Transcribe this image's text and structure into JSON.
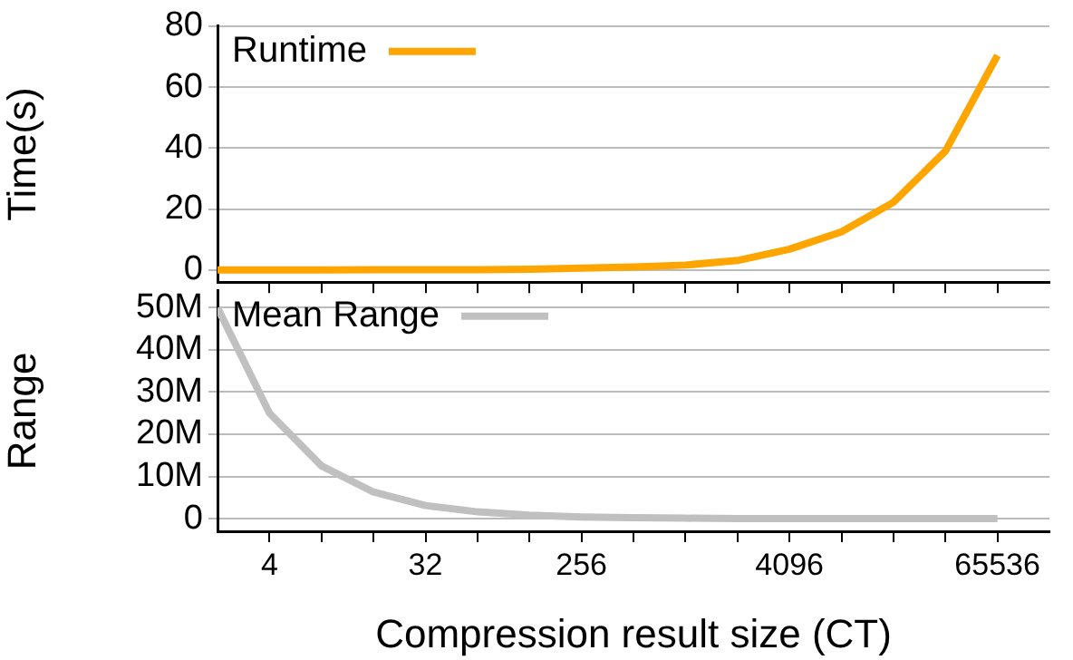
{
  "chart_data": [
    {
      "type": "line",
      "ylabel": "Time(s)",
      "x": [
        2,
        4,
        8,
        16,
        32,
        64,
        128,
        256,
        512,
        1024,
        2048,
        4096,
        8192,
        16384,
        32768,
        65536
      ],
      "log": "x",
      "xlim": [
        2,
        131072
      ],
      "xticks": [
        {
          "value": 4,
          "label": null
        },
        {
          "value": 8,
          "label": null
        },
        {
          "value": 16,
          "label": null
        },
        {
          "value": 32,
          "label": null
        },
        {
          "value": 64,
          "label": null
        },
        {
          "value": 128,
          "label": null
        },
        {
          "value": 256,
          "label": null
        },
        {
          "value": 512,
          "label": null
        },
        {
          "value": 1024,
          "label": null
        },
        {
          "value": 2048,
          "label": null
        },
        {
          "value": 4096,
          "label": null
        },
        {
          "value": 8192,
          "label": null
        },
        {
          "value": 16384,
          "label": null
        },
        {
          "value": 32768,
          "label": null
        },
        {
          "value": 65536,
          "label": null
        }
      ],
      "ylim": [
        -4,
        80
      ],
      "yticks": [
        0,
        20,
        40,
        60,
        80
      ],
      "tick_labels": "y",
      "grid": "y",
      "legend": "top left",
      "marker": "none",
      "line_style": "solid",
      "series": [
        {
          "name": "Runtime",
          "color": "#ffa500",
          "values": [
            0,
            0,
            0,
            0.1,
            0.1,
            0.1,
            0.2,
            0.6,
            1.0,
            1.6,
            3.1,
            6.8,
            12.5,
            22.2,
            39,
            70.4
          ]
        }
      ]
    },
    {
      "type": "line",
      "xlabel": "Compression result size (CT)",
      "ylabel": "Range",
      "x": [
        2,
        4,
        8,
        16,
        32,
        64,
        128,
        256,
        512,
        1024,
        2048,
        4096,
        8192,
        16384,
        32768,
        65536
      ],
      "log": "x",
      "xlim": [
        2,
        131072
      ],
      "xticks": [
        4,
        {
          "value": 8,
          "label": null
        },
        {
          "value": 16,
          "label": null
        },
        32,
        {
          "value": 64,
          "label": null
        },
        {
          "value": 128,
          "label": null
        },
        256,
        {
          "value": 512,
          "label": null
        },
        {
          "value": 1024,
          "label": null
        },
        {
          "value": 2048,
          "label": null
        },
        4096,
        {
          "value": 8192,
          "label": null
        },
        {
          "value": 16384,
          "label": null
        },
        {
          "value": 32768,
          "label": null
        },
        65536
      ],
      "ylim": [
        -3000000,
        54000000
      ],
      "yticks": [
        {
          "value": 0,
          "label": "0"
        },
        {
          "value": 10000000,
          "label": "10M"
        },
        {
          "value": 20000000,
          "label": "20M"
        },
        {
          "value": 30000000,
          "label": "30M"
        },
        {
          "value": 40000000,
          "label": "40M"
        },
        {
          "value": 50000000,
          "label": "50M"
        }
      ],
      "grid": "y",
      "legend": "top left",
      "marker": "none",
      "line_style": "solid",
      "series": [
        {
          "name": "Mean Range",
          "color": "#c0c0c0",
          "values": [
            50000000,
            25000000,
            12500000,
            6300000,
            3100000,
            1600000,
            800000,
            400000,
            200000,
            100000,
            0,
            0,
            0,
            0,
            0,
            0
          ]
        }
      ]
    }
  ]
}
